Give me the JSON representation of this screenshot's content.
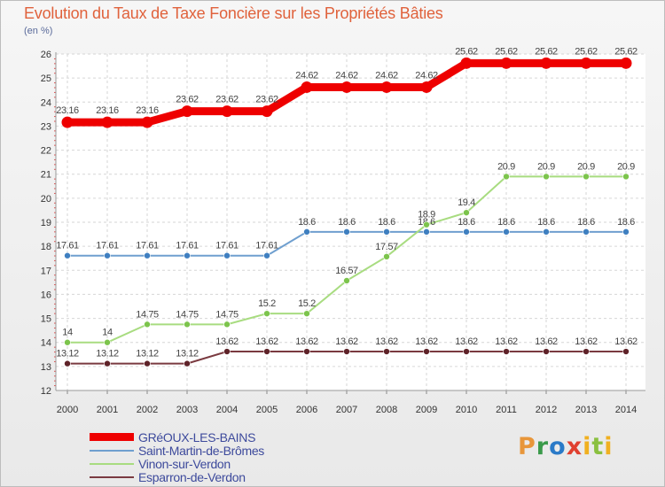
{
  "chart_data": {
    "type": "line",
    "title": "Evolution du Taux de Taxe Foncière sur les Propriétés Bâties",
    "ylabel": "(en %)",
    "xlabel": "",
    "ylim": [
      12,
      26
    ],
    "yticks": [
      "12",
      "13",
      "14",
      "15",
      "16",
      "17",
      "18",
      "19",
      "20",
      "21",
      "22",
      "23",
      "24",
      "25",
      "26"
    ],
    "x": [
      "2000",
      "2001",
      "2002",
      "2003",
      "2004",
      "2005",
      "2006",
      "2007",
      "2008",
      "2009",
      "2010",
      "2011",
      "2012",
      "2013",
      "2014"
    ],
    "grid": true,
    "legend_position": "bottom-left",
    "series": [
      {
        "name": "GRéOUX-LES-BAINS",
        "color": "#ee0000",
        "thick": true,
        "values": [
          23.16,
          23.16,
          23.16,
          23.62,
          23.62,
          23.62,
          24.62,
          24.62,
          24.62,
          24.62,
          25.62,
          25.62,
          25.62,
          25.62,
          25.62
        ],
        "labels": [
          "23.16",
          "23.16",
          "23.16",
          "23.62",
          "23.62",
          "23.62",
          "24.62",
          "24.62",
          "24.62",
          "24.62",
          "25.62",
          "25.62",
          "25.62",
          "25.62",
          "25.62"
        ]
      },
      {
        "name": "Saint-Martin-de-Brômes",
        "color": "#6f9fcf",
        "marker": "#3f7fc0",
        "values": [
          17.61,
          17.61,
          17.61,
          17.61,
          17.61,
          17.61,
          18.6,
          18.6,
          18.6,
          18.6,
          18.6,
          18.6,
          18.6,
          18.6,
          18.6
        ],
        "labels": [
          "17.61",
          "17.61",
          "17.61",
          "17.61",
          "17.61",
          "17.61",
          "18.6",
          "18.6",
          "18.6",
          "18.6",
          "18.6",
          "18.6",
          "18.6",
          "18.6",
          "18.6"
        ]
      },
      {
        "name": "Vinon-sur-Verdon",
        "color": "#a8dc80",
        "marker": "#7cc44c",
        "values": [
          14,
          14,
          14.75,
          14.75,
          14.75,
          15.2,
          15.2,
          16.57,
          17.57,
          18.9,
          19.4,
          20.9,
          20.9,
          20.9,
          20.9
        ],
        "labels": [
          "14",
          "14",
          "14.75",
          "14.75",
          "14.75",
          "15.2",
          "15.2",
          "16.57",
          "17.57",
          "18.9",
          "19.4",
          "20.9",
          "20.9",
          "20.9",
          "20.9"
        ]
      },
      {
        "name": "Esparron-de-Verdon",
        "color": "#7a3a40",
        "marker": "#5e2228",
        "values": [
          13.12,
          13.12,
          13.12,
          13.12,
          13.62,
          13.62,
          13.62,
          13.62,
          13.62,
          13.62,
          13.62,
          13.62,
          13.62,
          13.62,
          13.62
        ],
        "labels": [
          "13.12",
          "13.12",
          "13.12",
          "13.12",
          "13.62",
          "13.62",
          "13.62",
          "13.62",
          "13.62",
          "13.62",
          "13.62",
          "13.62",
          "13.62",
          "13.62",
          "13.62"
        ]
      }
    ]
  },
  "logo": {
    "letters": [
      {
        "ch": "P",
        "color": "#e8963a"
      },
      {
        "ch": "r",
        "color": "#3a9a4a"
      },
      {
        "ch": "o",
        "color": "#2a7ac8"
      },
      {
        "ch": "x",
        "color": "#e04030"
      },
      {
        "ch": "i",
        "color": "#f0b020"
      },
      {
        "ch": "t",
        "color": "#8ac040"
      },
      {
        "ch": "i",
        "color": "#f0b020"
      }
    ]
  }
}
